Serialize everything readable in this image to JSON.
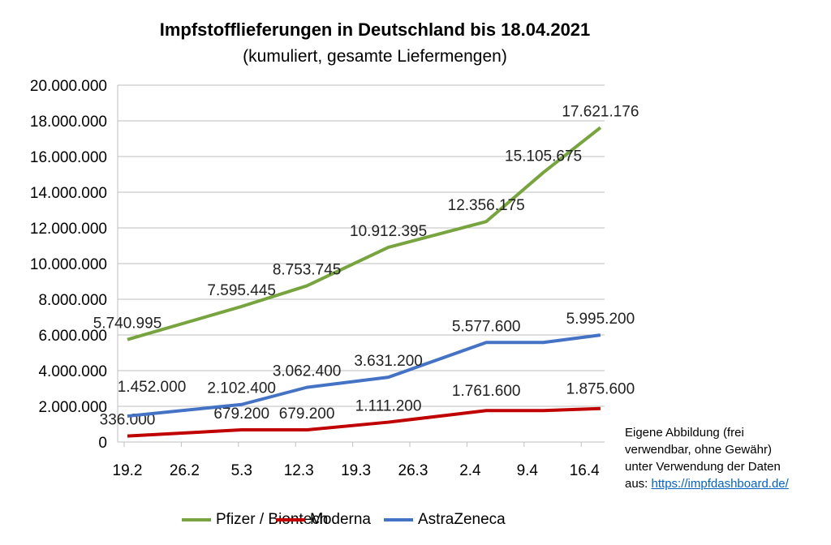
{
  "chart_data": {
    "type": "line",
    "title": "Impfstofflieferungen in Deutschland bis 18.04.2021",
    "subtitle": "(kumuliert, gesamte Liefermengen)",
    "xlabel": "",
    "ylabel": "",
    "x_tick_labels": [
      "19.2",
      "26.2",
      "5.3",
      "12.3",
      "19.3",
      "26.3",
      "2.4",
      "9.4",
      "16.4"
    ],
    "y_tick_labels": [
      "0",
      "2.000.000",
      "4.000.000",
      "6.000.000",
      "8.000.000",
      "10.000.000",
      "12.000.000",
      "14.000.000",
      "16.000.000",
      "18.000.000",
      "20.000.000"
    ],
    "ylim": [
      0,
      20000000
    ],
    "grid": "horizontal",
    "legend_position": "bottom",
    "x": [
      "2021-02-19",
      "2021-03-05",
      "2021-03-13",
      "2021-03-23",
      "2021-04-04",
      "2021-04-11",
      "2021-04-18"
    ],
    "series": [
      {
        "name": "Pfizer / Biontech",
        "color": "#77a43f",
        "values": [
          5740995,
          7595445,
          8753745,
          10912395,
          12356175,
          15105675,
          17621176
        ],
        "labels": [
          "5.740.995",
          "7.595.445",
          "8.753.745",
          "10.912.395",
          "12.356.175",
          "15.105.675",
          "17.621.176"
        ]
      },
      {
        "name": "Moderna",
        "color": "#c00000",
        "values": [
          336000,
          679200,
          679200,
          1111200,
          1761600,
          1761600,
          1875600
        ],
        "labels": [
          "336.000",
          "679.200",
          "679.200",
          "1.111.200",
          "1.761.600",
          null,
          "1.875.600"
        ]
      },
      {
        "name": "AstraZeneca",
        "color": "#4472c4",
        "values": [
          1452000,
          2102400,
          3062400,
          3631200,
          5577600,
          5577600,
          5995200
        ],
        "labels": [
          "1.452.000",
          "2.102.400",
          "3.062.400",
          "3.631.200",
          "5.577.600",
          null,
          "5.995.200"
        ]
      }
    ]
  },
  "note": {
    "lines": [
      "Eigene Abbildung (frei",
      "verwendbar, ohne Gewähr)",
      "unter Verwendung der Daten"
    ],
    "prefix": "aus: ",
    "link": "https://impfdashboard.de/"
  }
}
